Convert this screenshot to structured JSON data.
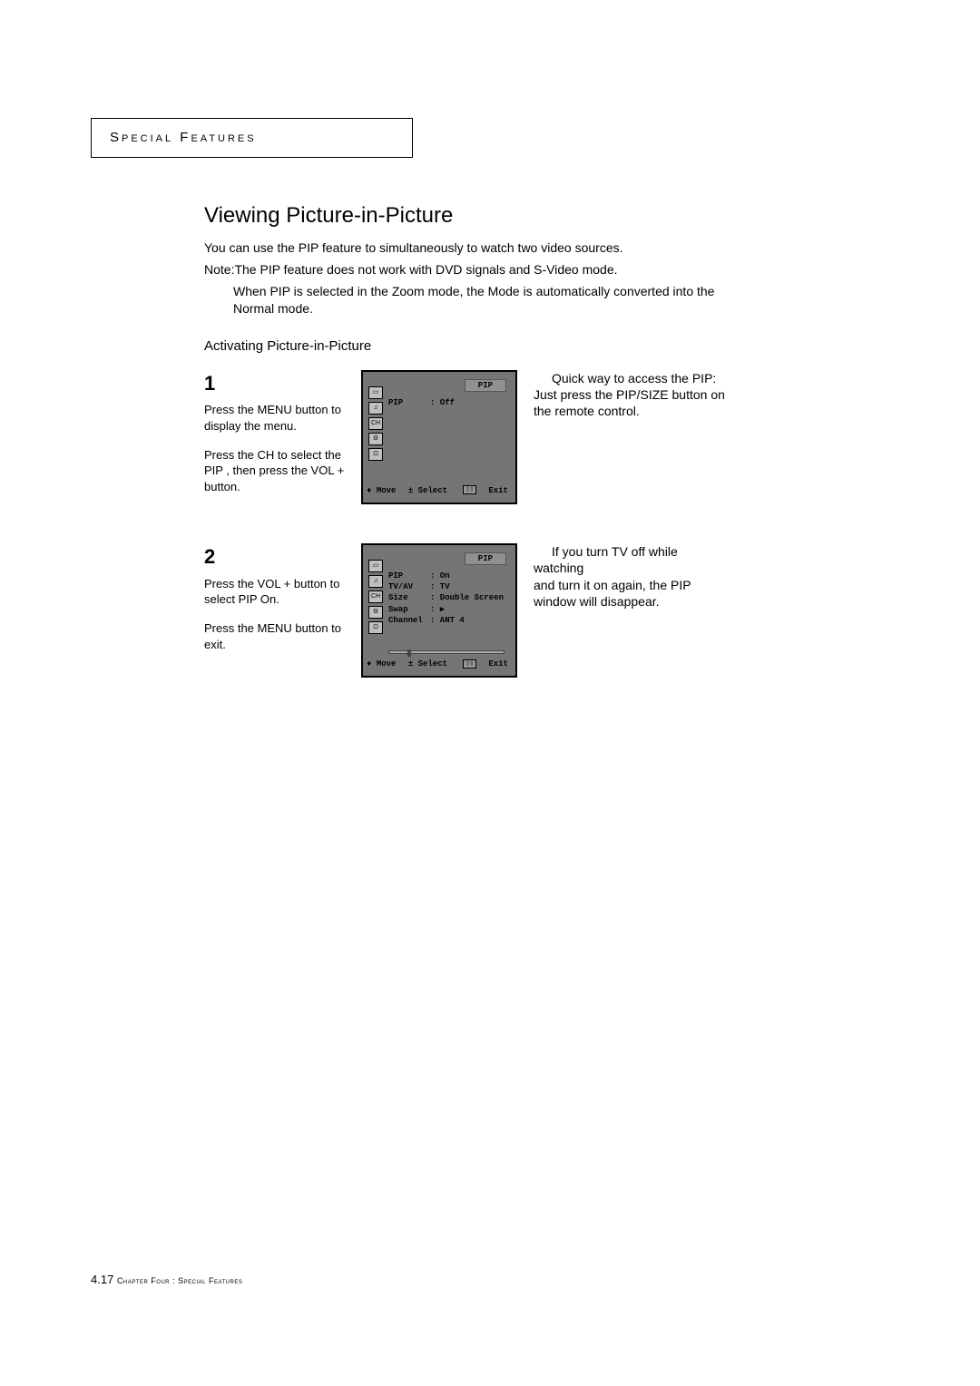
{
  "header": {
    "chapter_label": "Special Features"
  },
  "main": {
    "title": "Viewing Picture-in-Picture",
    "intro_line1": "You can use the PIP feature to simultaneously to watch two video sources.",
    "intro_line2": "Note:The PIP feature does not work with DVD signals and S-Video mode.",
    "indent_note": "When PIP is selected in the Zoom mode, the Mode is automatically converted into the Normal mode.",
    "subtitle": "Activating Picture-in-Picture"
  },
  "steps": {
    "1": {
      "num": "1",
      "p1_a": "Press the ",
      "p1_b": "MENU ",
      "p1_c": "button to display the menu.",
      "p2_a": "Press the ",
      "p2_b": "CH ",
      "p2_c": " to select the PIP , then press the VOL + button."
    },
    "2": {
      "num": "2",
      "p1_a": "Press the ",
      "p1_b": "VOL + ",
      "p1_c": "button to select PIP On.",
      "p2_a": "Press the ",
      "p2_b": "MENU ",
      "p2_c": "button to exit."
    }
  },
  "tips": {
    "tip1": "Quick way to access the PIP: Just press the PIP/SIZE button on the remote control.",
    "tip1_first": "Quick way to access the PIP:",
    "tip1_rest": "Just press the PIP/SIZE button on the remote control.",
    "tip2_first": "If you turn TV off while watching",
    "tip2_rest": "and turn it on again, the PIP window will disappear."
  },
  "osd1": {
    "header": "PIP",
    "rows": [
      {
        "label": "PIP",
        "value": ": Off"
      }
    ],
    "footer_move": "♦ Move",
    "footer_select": "± Select",
    "footer_exit": "Exit"
  },
  "osd2": {
    "header": "PIP",
    "rows": [
      {
        "label": "PIP",
        "value": ": On"
      },
      {
        "label": "TV/AV",
        "value": ": TV"
      },
      {
        "label": "Size",
        "value": ": Double Screen"
      },
      {
        "label": "Swap",
        "value": ": ▶"
      },
      {
        "label": "Channel",
        "value": ": ANT 4"
      }
    ],
    "footer_move": "♦ Move",
    "footer_select": "± Select",
    "footer_exit": "Exit"
  },
  "footer": {
    "page": "4.17",
    "chapter": " Chapter Four : Special Features"
  },
  "colors": {
    "osd_bg": "#757575",
    "page_bg": "#ffffff",
    "text": "#000000"
  }
}
